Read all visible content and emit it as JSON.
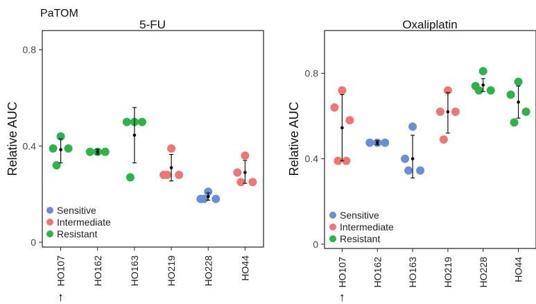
{
  "header": {
    "label": "PaTOM"
  },
  "colors": {
    "Sensitive": "#6a8fd6",
    "Intermediate": "#ef7676",
    "Resistant": "#2db34a"
  },
  "legend": [
    "Sensitive",
    "Intermediate",
    "Resistant"
  ],
  "marker": {
    "category": "HO107",
    "symbol": "↑"
  },
  "chart_data": [
    {
      "type": "scatter",
      "title": "5-FU",
      "xlabel": "",
      "ylabel": "Relative AUC",
      "ylim": [
        -0.02,
        0.88
      ],
      "yticks": [
        0,
        0.4,
        0.8
      ],
      "ytick_labels": [
        "0",
        "0.4",
        "0.8"
      ],
      "grid": false,
      "legend_position": "bottom-left",
      "categories": [
        "HO107",
        "HO162",
        "HO163",
        "HO219",
        "HO228",
        "HO44"
      ],
      "groups": [
        {
          "category": "HO107",
          "class": "Resistant",
          "points": [
            0.44,
            0.39,
            0.39,
            0.32
          ],
          "mean": 0.385,
          "sd_low": 0.33,
          "sd_high": 0.43
        },
        {
          "category": "HO162",
          "class": "Resistant",
          "points": [
            0.376,
            0.376,
            0.376
          ],
          "mean": 0.376,
          "sd_low": 0.366,
          "sd_high": 0.386
        },
        {
          "category": "HO163",
          "class": "Resistant",
          "points": [
            0.5,
            0.5,
            0.5,
            0.27
          ],
          "mean": 0.445,
          "sd_low": 0.33,
          "sd_high": 0.56
        },
        {
          "category": "HO219",
          "class": "Intermediate",
          "points": [
            0.39,
            0.28,
            0.28,
            0.28
          ],
          "mean": 0.31,
          "sd_low": 0.255,
          "sd_high": 0.365
        },
        {
          "category": "HO228",
          "class": "Sensitive",
          "points": [
            0.21,
            0.18,
            0.18,
            0.18
          ],
          "mean": 0.19,
          "sd_low": 0.175,
          "sd_high": 0.205
        },
        {
          "category": "HO44",
          "class": "Intermediate",
          "points": [
            0.36,
            0.29,
            0.25,
            0.25
          ],
          "mean": 0.29,
          "sd_low": 0.245,
          "sd_high": 0.34
        }
      ]
    },
    {
      "type": "scatter",
      "title": "Oxaliplatin",
      "xlabel": "",
      "ylabel": "Relative AUC",
      "ylim": [
        -0.02,
        1.0
      ],
      "yticks": [
        0,
        0.4,
        0.8
      ],
      "ytick_labels": [
        "0",
        "0.4",
        "0.8"
      ],
      "grid": false,
      "legend_position": "bottom-left",
      "categories": [
        "HO107",
        "HO162",
        "HO163",
        "HO219",
        "HO228",
        "HO44"
      ],
      "groups": [
        {
          "category": "HO107",
          "class": "Intermediate",
          "points": [
            0.72,
            0.64,
            0.58,
            0.39,
            0.39
          ],
          "mean": 0.545,
          "sd_low": 0.39,
          "sd_high": 0.7
        },
        {
          "category": "HO162",
          "class": "Sensitive",
          "points": [
            0.475,
            0.475,
            0.475
          ],
          "mean": 0.475,
          "sd_low": 0.465,
          "sd_high": 0.485
        },
        {
          "category": "HO163",
          "class": "Sensitive",
          "points": [
            0.55,
            0.4,
            0.345,
            0.345
          ],
          "mean": 0.4,
          "sd_low": 0.31,
          "sd_high": 0.51
        },
        {
          "category": "HO219",
          "class": "Intermediate",
          "points": [
            0.72,
            0.62,
            0.62,
            0.49
          ],
          "mean": 0.62,
          "sd_low": 0.52,
          "sd_high": 0.71
        },
        {
          "category": "HO228",
          "class": "Resistant",
          "points": [
            0.81,
            0.74,
            0.72,
            0.72
          ],
          "mean": 0.745,
          "sd_low": 0.715,
          "sd_high": 0.775
        },
        {
          "category": "HO44",
          "class": "Resistant",
          "points": [
            0.76,
            0.7,
            0.62,
            0.57
          ],
          "mean": 0.665,
          "sd_low": 0.59,
          "sd_high": 0.74
        }
      ]
    }
  ]
}
